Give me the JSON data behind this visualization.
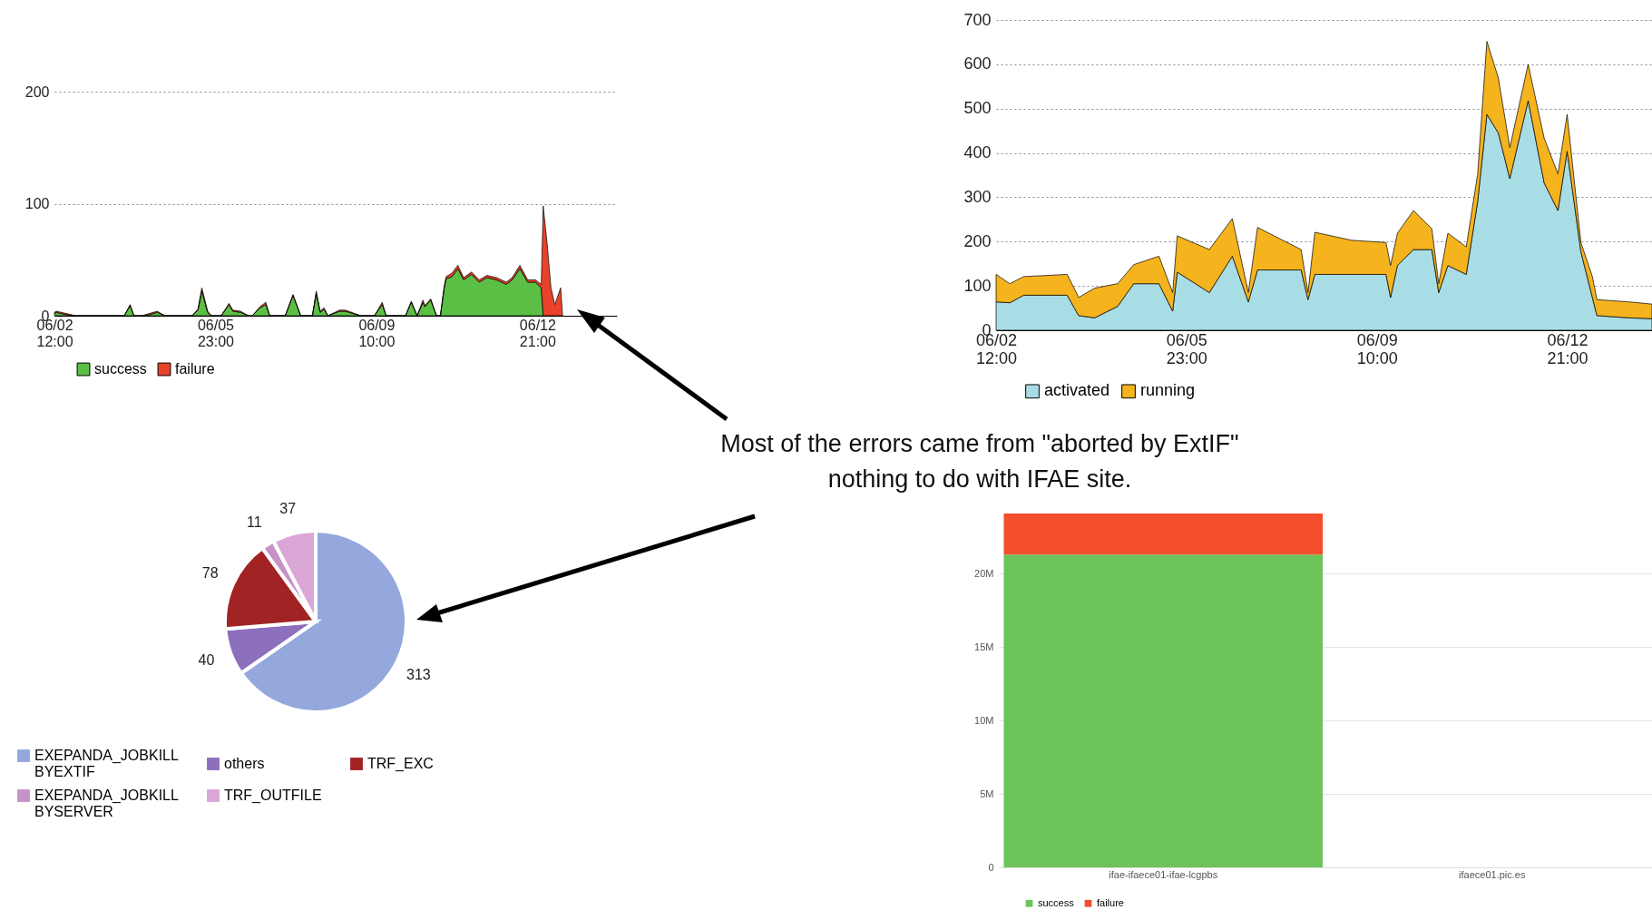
{
  "chart_data": [
    {
      "type": "area",
      "stacked": true,
      "grid": "y",
      "legend": "bottom",
      "ylim": [
        0,
        200
      ],
      "yticks": [
        0,
        100,
        200
      ],
      "xlim": [
        "--06-02T12:00",
        "--06-14T14:00"
      ],
      "xticks": [
        {
          "value": "--06-02T12:00",
          "label": "06/02 12:00"
        },
        {
          "value": "--06-05T23:00",
          "label": "06/05 23:00"
        },
        {
          "value": "--06-09T10:00",
          "label": "06/09 10:00"
        },
        {
          "value": "--06-12T21:00",
          "label": "06/12 21:00"
        }
      ],
      "x": [
        "--06-02T12:00",
        "--06-02T13:00",
        "--06-02T18:00",
        "--06-02T23:00",
        "--06-04T00:00",
        "--06-04T03:00",
        "--06-04T05:00",
        "--06-04T09:00",
        "--06-04T13:00",
        "--06-04T17:00",
        "--06-04T21:00",
        "--06-05T11:00",
        "--06-05T14:00",
        "--06-05T16:00",
        "--06-05T19:00",
        "--06-05T21:00",
        "--06-06T02:00",
        "--06-06T06:00",
        "--06-06T08:00",
        "--06-06T12:00",
        "--06-06T16:00",
        "--06-06T18:00",
        "--06-06T22:00",
        "--06-07T01:00",
        "--06-07T03:00",
        "--06-07T11:00",
        "--06-07T15:00",
        "--06-07T19:00",
        "--06-08T01:00",
        "--06-08T03:00",
        "--06-08T05:00",
        "--06-08T07:00",
        "--06-08T09:00",
        "--06-08T15:00",
        "--06-08T18:00",
        "--06-09T02:00",
        "--06-09T09:00",
        "--06-09T13:00",
        "--06-09T15:00",
        "--06-10T01:00",
        "--06-10T04:00",
        "--06-10T07:00",
        "--06-10T10:00",
        "--06-10T11:00",
        "--06-10T14:00",
        "--06-10T17:00",
        "--06-10T19:00",
        "--06-10T21:00",
        "--06-10T22:00",
        "--06-11T01:00",
        "--06-11T04:00",
        "--06-11T07:00",
        "--06-11T11:00",
        "--06-11T15:00",
        "--06-11T19:00",
        "--06-12T00:00",
        "--06-12T05:00",
        "--06-12T08:00",
        "--06-12T12:00",
        "--06-12T16:00",
        "--06-12T20:00",
        "--06-12T23:00",
        "--06-13T00:00",
        "--06-13T02:00",
        "--06-13T04:00",
        "--06-13T06:00",
        "--06-13T09:00",
        "--06-13T10:00"
      ],
      "series": [
        {
          "name": "success",
          "color": "#5cbf45",
          "values": [
            2,
            3,
            1,
            0,
            0,
            9,
            0,
            0,
            1,
            3,
            0,
            0,
            5,
            22,
            3,
            0,
            0,
            10,
            4,
            3,
            0,
            0,
            7,
            10,
            0,
            0,
            18,
            0,
            0,
            20,
            3,
            6,
            0,
            4,
            4,
            0,
            0,
            10,
            0,
            0,
            12,
            0,
            12,
            8,
            14,
            0,
            0,
            25,
            33,
            35,
            42,
            32,
            37,
            30,
            34,
            32,
            28,
            32,
            42,
            30,
            30,
            25,
            0,
            0,
            0,
            0,
            0,
            0
          ]
        },
        {
          "name": "failure",
          "color": "#e8432a",
          "values": [
            1,
            1,
            1,
            0,
            0,
            1,
            0,
            0,
            1,
            1,
            0,
            0,
            1,
            3,
            1,
            0,
            0,
            1,
            1,
            1,
            0,
            0,
            1,
            2,
            0,
            0,
            1,
            0,
            0,
            2,
            1,
            1,
            0,
            1,
            1,
            0,
            0,
            2,
            0,
            0,
            1,
            0,
            2,
            1,
            1,
            0,
            0,
            2,
            2,
            3,
            3,
            2,
            2,
            2,
            2,
            2,
            2,
            2,
            3,
            2,
            2,
            3,
            98,
            65,
            25,
            10,
            25,
            0
          ]
        }
      ]
    },
    {
      "type": "area",
      "stacked": true,
      "grid": "y",
      "legend": "bottom",
      "ylim": [
        0,
        700
      ],
      "yticks": [
        0,
        100,
        200,
        300,
        400,
        500,
        600,
        700
      ],
      "xlim": [
        "--06-02T12:00",
        "--06-14T10:00"
      ],
      "xticks": [
        {
          "value": "--06-02T12:00",
          "label": "06/02 12:00"
        },
        {
          "value": "--06-05T23:00",
          "label": "06/05 23:00"
        },
        {
          "value": "--06-09T10:00",
          "label": "06/09 10:00"
        },
        {
          "value": "--06-12T21:00",
          "label": "06/12 21:00"
        }
      ],
      "x": [
        "--06-02T12:00",
        "--06-02T18:00",
        "--06-03T00:00",
        "--06-03T19:00",
        "--06-04T00:00",
        "--06-04T07:00",
        "--06-04T17:00",
        "--06-05T00:00",
        "--06-05T11:00",
        "--06-05T17:00",
        "--06-05T19:00",
        "--06-06T09:00",
        "--06-06T19:00",
        "--06-07T02:00",
        "--06-07T06:00",
        "--06-08T01:00",
        "--06-08T04:00",
        "--06-08T07:00",
        "--06-08T23:00",
        "--06-09T14:00",
        "--06-09T16:00",
        "--06-09T19:00",
        "--06-10T02:00",
        "--06-10T10:00",
        "--06-10T13:00",
        "--06-10T17:00",
        "--06-11T01:00",
        "--06-11T06:00",
        "--06-11T10:00",
        "--06-11T15:00",
        "--06-11T20:00",
        "--06-12T04:00",
        "--06-12T11:00",
        "--06-12T17:00",
        "--06-12T21:00",
        "--06-13T03:00",
        "--06-13T08:00",
        "--06-13T10:00",
        "--06-14T00:00",
        "--06-14T10:00"
      ],
      "series": [
        {
          "name": "activated",
          "color": "#a8dde5",
          "values": [
            64,
            62,
            79,
            79,
            33,
            28,
            54,
            105,
            105,
            43,
            131,
            85,
            167,
            64,
            136,
            136,
            69,
            126,
            126,
            126,
            74,
            146,
            182,
            182,
            85,
            146,
            126,
            291,
            487,
            445,
            342,
            518,
            332,
            270,
            404,
            177,
            74,
            33,
            28,
            26
          ]
        },
        {
          "name": "running",
          "color": "#f5b31e",
          "values": [
            62,
            43,
            42,
            47,
            41,
            67,
            51,
            43,
            62,
            42,
            82,
            97,
            85,
            21,
            96,
            46,
            16,
            95,
            77,
            72,
            72,
            73,
            88,
            47,
            20,
            73,
            62,
            62,
            165,
            124,
            70,
            82,
            101,
            83,
            83,
            21,
            47,
            36,
            36,
            33
          ]
        }
      ]
    },
    {
      "type": "pie",
      "legend": "bottom",
      "data_labels": true,
      "categories": [
        "EXEPANDA_JOBKILL BYEXTIF",
        "others",
        "TRF_EXC",
        "EXEPANDA_JOBKILL BYSERVER",
        "TRF_OUTFILE"
      ],
      "values": [
        313,
        40,
        78,
        11,
        37
      ],
      "colors": [
        "#94a8dd",
        "#8c6fbd",
        "#a22323",
        "#c792c8",
        "#d9a6d6"
      ],
      "annotations": [
        "Most of the errors came from \"aborted by ExtIF\"",
        "nothing to do with IFAE site."
      ]
    },
    {
      "type": "bar",
      "stacked": true,
      "grid": "y",
      "legend": "bottom",
      "categories": [
        "ifae-ifaece01-ifae-lcgpbs",
        "ifaece01.pic.es"
      ],
      "ylim": [
        0,
        24.1
      ],
      "yticks": [
        0,
        {
          "value": 5,
          "label": "5M"
        },
        {
          "value": 10,
          "label": "10M"
        },
        {
          "value": 15,
          "label": "15M"
        },
        {
          "value": 20,
          "label": "20M"
        }
      ],
      "series": [
        {
          "name": "success",
          "color": "#6cc35a",
          "values": [
            21.3,
            null
          ]
        },
        {
          "name": "failure",
          "color": "#f44e2d",
          "values": [
            2.8,
            null
          ]
        }
      ]
    }
  ]
}
